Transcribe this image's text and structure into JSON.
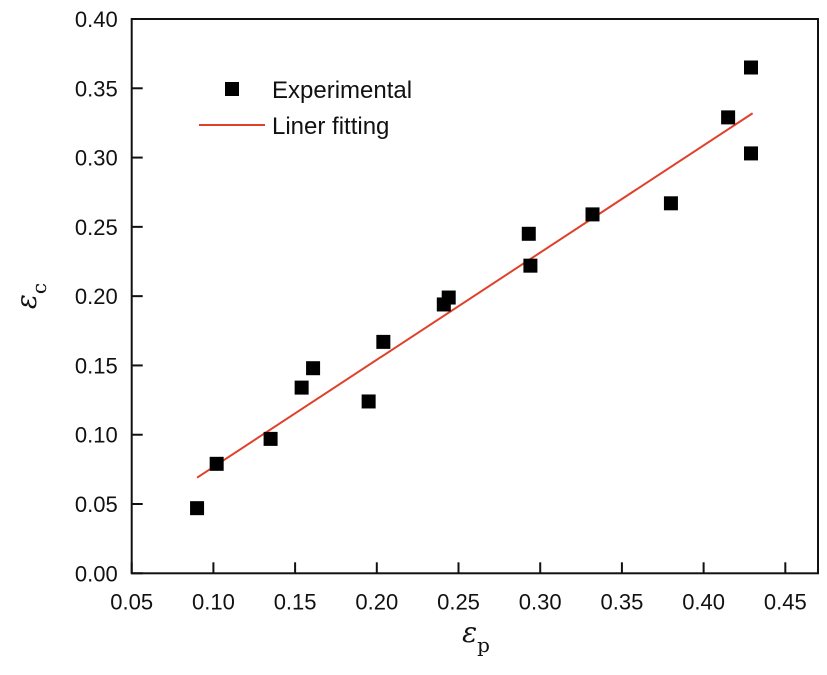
{
  "chart_data": {
    "type": "scatter",
    "title": "",
    "xlabel": "ε",
    "xlabel_sub": "p",
    "ylabel": "ε",
    "ylabel_sub": "c",
    "xlim": [
      0.05,
      0.47
    ],
    "ylim": [
      0.0,
      0.4
    ],
    "xticks": [
      "0.05",
      "0.10",
      "0.15",
      "0.20",
      "0.25",
      "0.30",
      "0.35",
      "0.40",
      "0.45"
    ],
    "yticks": [
      "0.00",
      "0.05",
      "0.10",
      "0.15",
      "0.20",
      "0.25",
      "0.30",
      "0.35",
      "0.40"
    ],
    "grid": false,
    "legend_position": "top-left",
    "series": [
      {
        "name": "Experimental",
        "type": "scatter",
        "marker": "square",
        "color": "#000000",
        "x": [
          0.09,
          0.102,
          0.135,
          0.154,
          0.161,
          0.195,
          0.204,
          0.241,
          0.244,
          0.293,
          0.294,
          0.332,
          0.38,
          0.415,
          0.429,
          0.429
        ],
        "y": [
          0.047,
          0.079,
          0.097,
          0.134,
          0.148,
          0.124,
          0.167,
          0.194,
          0.199,
          0.245,
          0.222,
          0.259,
          0.267,
          0.329,
          0.365,
          0.303
        ]
      },
      {
        "name": "Liner fitting",
        "type": "line",
        "color": "#e0412a",
        "x": [
          0.09,
          0.43
        ],
        "y": [
          0.069,
          0.332
        ]
      }
    ]
  }
}
